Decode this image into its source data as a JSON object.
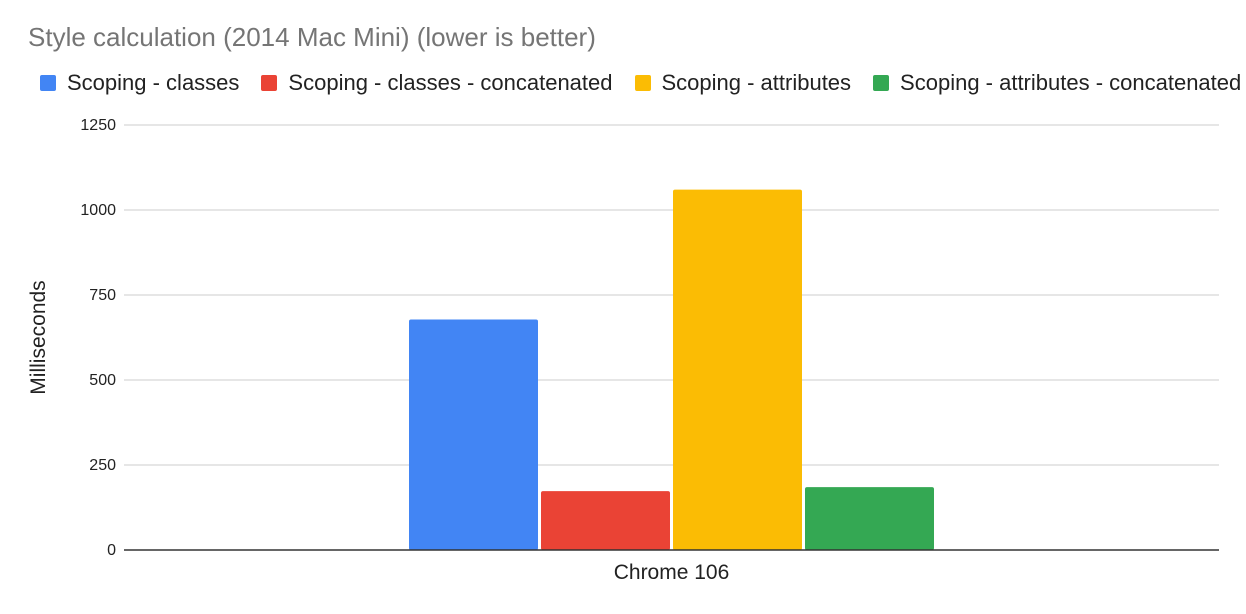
{
  "chart_data": {
    "type": "bar",
    "title": "Style calculation (2014 Mac Mini) (lower is better)",
    "xlabel": "",
    "ylabel": "Milliseconds",
    "categories": [
      "Chrome 106"
    ],
    "ylim": [
      0,
      1250
    ],
    "yticks": [
      0,
      250,
      500,
      750,
      1000,
      1250
    ],
    "grid": true,
    "legend_position": "top",
    "series": [
      {
        "name": "Scoping - classes",
        "values": [
          678
        ],
        "color": "#4285f4"
      },
      {
        "name": "Scoping - classes - concatenated",
        "values": [
          173
        ],
        "color": "#ea4335"
      },
      {
        "name": "Scoping - attributes",
        "values": [
          1060
        ],
        "color": "#fbbc04"
      },
      {
        "name": "Scoping - attributes - concatenated",
        "values": [
          185
        ],
        "color": "#34a853"
      }
    ]
  }
}
